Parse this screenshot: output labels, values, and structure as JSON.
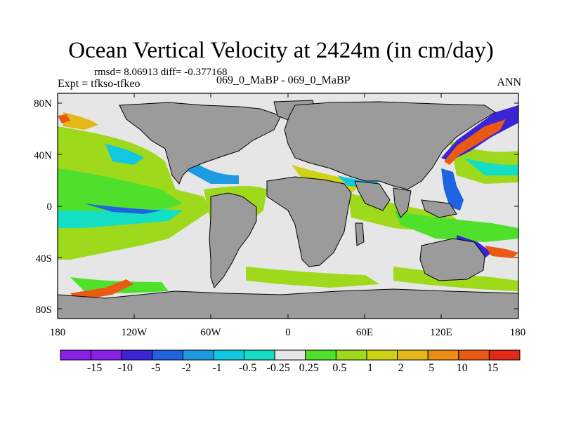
{
  "title": "Ocean Vertical Velocity at 2424m (in cm/day)",
  "stats": "rmsd= 8.06913 diff= -0.377168",
  "expt": "Expt = tfkso-tfkeo",
  "case": "069_0_MaBP - 069_0_MaBP",
  "season": "ANN",
  "lat_ticks": [
    "80N",
    "40N",
    "0",
    "40S",
    "80S"
  ],
  "lon_ticks": [
    "180",
    "120W",
    "60W",
    "0",
    "60E",
    "120E",
    "180"
  ],
  "colorbar": {
    "labels": [
      "-15",
      "-10",
      "-5",
      "-2",
      "-1",
      "-0.5",
      "-0.25",
      "0.25",
      "0.5",
      "1",
      "2",
      "5",
      "10",
      "15"
    ],
    "colors": [
      "#8a1fe6",
      "#3a24d6",
      "#1f63e0",
      "#1e9ae3",
      "#12c7e0",
      "#14dec3",
      "#e6e6e6",
      "#4ee02b",
      "#9ed91c",
      "#cfd114",
      "#e4b818",
      "#ec8c15",
      "#ea5a14",
      "#e42a16"
    ]
  },
  "land_color": "#9b9b9b"
}
